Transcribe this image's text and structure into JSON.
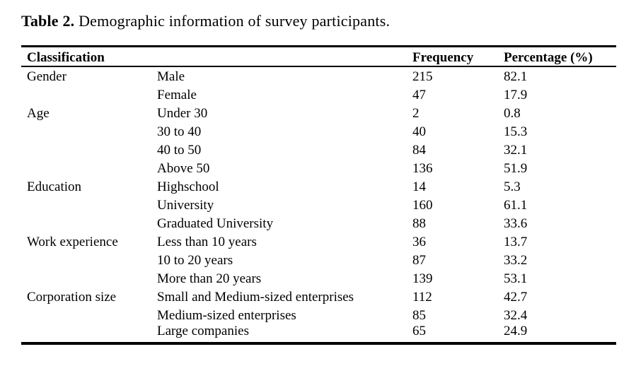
{
  "title": {
    "label": "Table 2.",
    "text": " Demographic information of survey participants."
  },
  "table": {
    "headers": {
      "classification": "Classification",
      "frequency": "Frequency",
      "percentage": "Percentage (%)"
    },
    "rows": [
      {
        "group": "Gender",
        "category": "Male",
        "frequency": "215",
        "percentage": "82.1"
      },
      {
        "group": "",
        "category": "Female",
        "frequency": "47",
        "percentage": "17.9"
      },
      {
        "group": "Age",
        "category": "Under 30",
        "frequency": "2",
        "percentage": "0.8"
      },
      {
        "group": "",
        "category": "30 to 40",
        "frequency": "40",
        "percentage": "15.3"
      },
      {
        "group": "",
        "category": "40 to 50",
        "frequency": "84",
        "percentage": "32.1"
      },
      {
        "group": "",
        "category": "Above 50",
        "frequency": "136",
        "percentage": "51.9"
      },
      {
        "group": "Education",
        "category": "Highschool",
        "frequency": "14",
        "percentage": "5.3"
      },
      {
        "group": "",
        "category": "University",
        "frequency": "160",
        "percentage": "61.1"
      },
      {
        "group": "",
        "category": "Graduated University",
        "frequency": "88",
        "percentage": "33.6"
      },
      {
        "group": "Work experience",
        "category": "Less than 10 years",
        "frequency": "36",
        "percentage": "13.7"
      },
      {
        "group": "",
        "category": "10 to 20 years",
        "frequency": "87",
        "percentage": "33.2"
      },
      {
        "group": "",
        "category": "More than 20 years",
        "frequency": "139",
        "percentage": "53.1"
      },
      {
        "group": "Corporation size",
        "category": "Small and Medium-sized enterprises",
        "frequency": "112",
        "percentage": "42.7"
      },
      {
        "group": "",
        "category": "Medium-sized enterprises",
        "frequency": "85",
        "percentage": "32.4"
      },
      {
        "group": "",
        "category": "Large companies",
        "frequency": "65",
        "percentage": "24.9"
      }
    ]
  }
}
